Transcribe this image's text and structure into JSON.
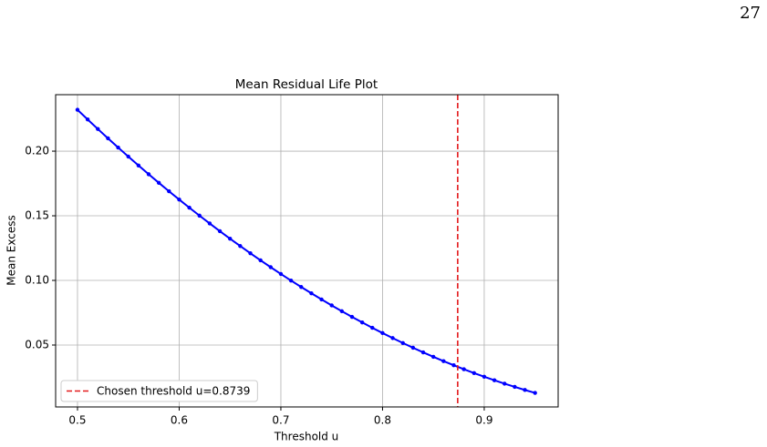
{
  "page_number": "27",
  "chart_data": {
    "type": "line",
    "title": "Mean Residual Life Plot",
    "xlabel": "Threshold u",
    "ylabel": "Mean Excess",
    "x": [
      0.5,
      0.51,
      0.52,
      0.53,
      0.54,
      0.55,
      0.56,
      0.57,
      0.58,
      0.59,
      0.6,
      0.61,
      0.62,
      0.63,
      0.64,
      0.65,
      0.66,
      0.67,
      0.68,
      0.69,
      0.7,
      0.71,
      0.72,
      0.73,
      0.74,
      0.75,
      0.76,
      0.77,
      0.78,
      0.79,
      0.8,
      0.81,
      0.82,
      0.83,
      0.84,
      0.85,
      0.86,
      0.87,
      0.88,
      0.89,
      0.9,
      0.91,
      0.92,
      0.93,
      0.94,
      0.95
    ],
    "series": [
      {
        "color": "#0000ff",
        "values": [
          0.232,
          0.22452,
          0.21716,
          0.20992,
          0.2028,
          0.1958,
          0.18891,
          0.18215,
          0.1755,
          0.16897,
          0.16256,
          0.15627,
          0.1501,
          0.14405,
          0.13811,
          0.13229,
          0.1266,
          0.12102,
          0.11556,
          0.11022,
          0.10499,
          0.09989,
          0.0949,
          0.09004,
          0.08529,
          0.08066,
          0.07615,
          0.07175,
          0.06748,
          0.06332,
          0.05929,
          0.05537,
          0.05157,
          0.04789,
          0.04433,
          0.04088,
          0.03756,
          0.03435,
          0.03127,
          0.0283,
          0.02545,
          0.02272,
          0.0201,
          0.01761,
          0.01523,
          0.01298
        ]
      }
    ],
    "threshold": 0.8739,
    "threshold_label": "Chosen threshold u=0.8739",
    "threshold_color": "#e31a1c",
    "xlim": [
      0.4785,
      0.9727
    ],
    "ylim": [
      0.0021,
      0.2437
    ],
    "xticks": [
      0.5,
      0.6,
      0.7,
      0.8,
      0.9
    ],
    "yticks": [
      0.05,
      {
        "value": 0.1,
        "label": "0.10"
      },
      0.15,
      {
        "value": 0.2,
        "label": "0.20"
      }
    ],
    "grid": true,
    "legend": "lower left"
  }
}
